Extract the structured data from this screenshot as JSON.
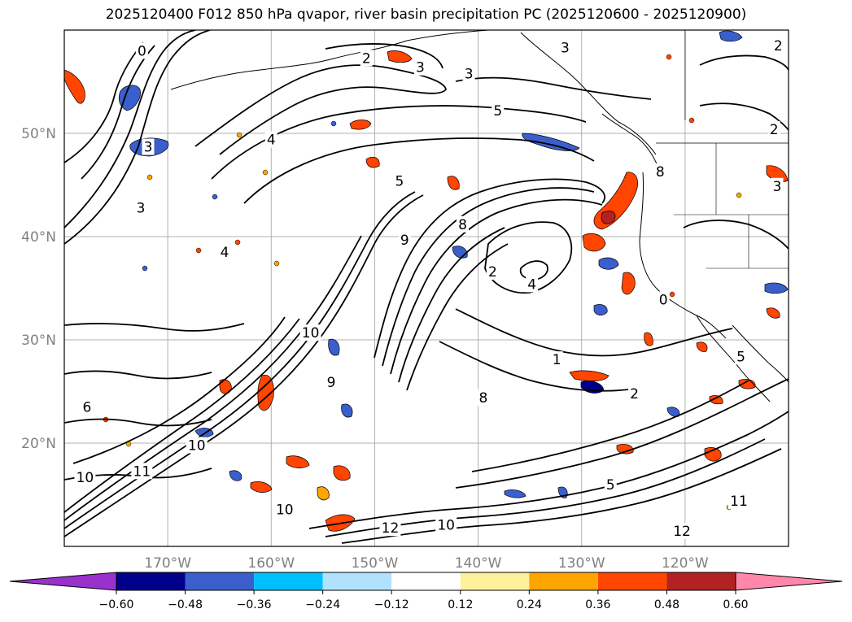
{
  "title": "2025120400 F012 850 hPa qvapor, river basin precipitation PC (2025120600 - 2025120900)",
  "map": {
    "projection": "plate-carree",
    "lon_range": [
      -180,
      -110
    ],
    "lat_range": [
      10,
      60
    ],
    "grid": true,
    "lat_ticks": [
      {
        "lat": 50,
        "label": "50°N"
      },
      {
        "lat": 40,
        "label": "40°N"
      },
      {
        "lat": 30,
        "label": "30°N"
      },
      {
        "lat": 20,
        "label": "20°N"
      }
    ],
    "lon_ticks": [
      {
        "lon": -170,
        "label": "170°W"
      },
      {
        "lon": -160,
        "label": "160°W"
      },
      {
        "lon": -150,
        "label": "150°W"
      },
      {
        "lon": -140,
        "label": "140°W"
      },
      {
        "lon": -130,
        "label": "130°W"
      },
      {
        "lon": -120,
        "label": "120°W"
      }
    ],
    "contour_labels": [
      {
        "text": "0",
        "lon": -172.5,
        "lat": 58.0
      },
      {
        "text": "2",
        "lon": -150.8,
        "lat": 57.3
      },
      {
        "text": "3",
        "lon": -145.6,
        "lat": 56.4
      },
      {
        "text": "3",
        "lon": -140.9,
        "lat": 55.8
      },
      {
        "text": "5",
        "lon": -138.1,
        "lat": 52.2
      },
      {
        "text": "3",
        "lon": -131.6,
        "lat": 58.3
      },
      {
        "text": "2",
        "lon": -111.0,
        "lat": 58.5
      },
      {
        "text": "2",
        "lon": -111.4,
        "lat": 50.4
      },
      {
        "text": "3",
        "lon": -171.9,
        "lat": 48.7
      },
      {
        "text": "4",
        "lon": -160.0,
        "lat": 49.4
      },
      {
        "text": "5",
        "lon": -147.6,
        "lat": 45.4
      },
      {
        "text": "8",
        "lon": -122.4,
        "lat": 46.3
      },
      {
        "text": "3",
        "lon": -111.1,
        "lat": 44.9
      },
      {
        "text": "3",
        "lon": -172.6,
        "lat": 42.8
      },
      {
        "text": "4",
        "lon": -164.5,
        "lat": 38.5
      },
      {
        "text": "8",
        "lon": -141.5,
        "lat": 41.2
      },
      {
        "text": "9",
        "lon": -147.1,
        "lat": 39.7
      },
      {
        "text": "2",
        "lon": -138.6,
        "lat": 36.6
      },
      {
        "text": "4",
        "lon": -134.8,
        "lat": 35.4
      },
      {
        "text": "0",
        "lon": -122.1,
        "lat": 33.9
      },
      {
        "text": "10",
        "lon": -156.2,
        "lat": 30.7
      },
      {
        "text": "1",
        "lon": -132.4,
        "lat": 28.1
      },
      {
        "text": "5",
        "lon": -114.6,
        "lat": 28.4
      },
      {
        "text": "9",
        "lon": -154.2,
        "lat": 25.9
      },
      {
        "text": "8",
        "lon": -139.5,
        "lat": 24.4
      },
      {
        "text": "2",
        "lon": -124.9,
        "lat": 24.8
      },
      {
        "text": "6",
        "lon": -177.8,
        "lat": 23.5
      },
      {
        "text": "10",
        "lon": -167.2,
        "lat": 19.8
      },
      {
        "text": "11",
        "lon": -172.5,
        "lat": 17.3
      },
      {
        "text": "10",
        "lon": -178.0,
        "lat": 16.7
      },
      {
        "text": "5",
        "lon": -127.2,
        "lat": 16.0
      },
      {
        "text": "10",
        "lon": -158.7,
        "lat": 13.6
      },
      {
        "text": "12",
        "lon": -148.5,
        "lat": 11.8
      },
      {
        "text": "12",
        "lon": -120.3,
        "lat": 11.5
      },
      {
        "text": "10",
        "lon": -143.1,
        "lat": 12.1
      },
      {
        "text": "11",
        "lon": -114.8,
        "lat": 14.4
      }
    ]
  },
  "colorbar": {
    "boundaries": [
      -0.72,
      -0.6,
      -0.48,
      -0.36,
      -0.24,
      -0.12,
      0.12,
      0.24,
      0.36,
      0.48,
      0.6,
      0.72
    ],
    "colors": [
      "#9932cc",
      "#00008b",
      "#3a5fcd",
      "#00bfff",
      "#b0e2ff",
      "#ffffff",
      "#fff09a",
      "#ffa500",
      "#ff4500",
      "#b22222",
      "#ff88aa"
    ],
    "under_color": "#9932cc",
    "over_color": "#ff88aa",
    "extend": "both",
    "tick_labels": [
      "−0.60",
      "−0.48",
      "−0.36",
      "−0.24",
      "−0.12",
      "0.12",
      "0.24",
      "0.36",
      "0.48",
      "0.60"
    ]
  }
}
